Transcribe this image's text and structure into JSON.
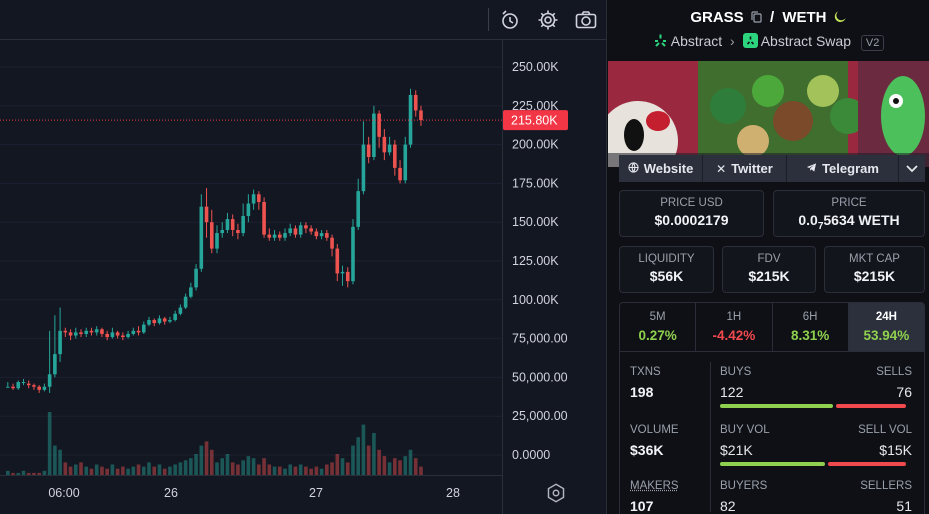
{
  "chart": {
    "price_ticks": [
      "250.00K",
      "225.00K",
      "200.00K",
      "175.00K",
      "150.00K",
      "125.00K",
      "100.00K",
      "75,000.00",
      "50,000.00",
      "25,000.00",
      "0.0000"
    ],
    "current_price_label": "215.80K",
    "time_ticks": [
      "06:00",
      "26",
      "27",
      "28"
    ],
    "colors": {
      "up": "#26a69a",
      "down": "#ef5350",
      "tag": "#f23645"
    }
  },
  "chart_data": {
    "type": "candlestick",
    "x_tick_labels": [
      "06:00",
      "26",
      "27",
      "28"
    ],
    "y_range": [
      0,
      250000
    ],
    "current_price": 215800,
    "candles_approx": [
      [
        44000,
        44000,
        47000,
        44000
      ],
      [
        44000,
        43000,
        46000,
        42000
      ],
      [
        43000,
        47000,
        48000,
        42000
      ],
      [
        47000,
        47000,
        49000,
        45000
      ],
      [
        46000,
        45000,
        48000,
        43000
      ],
      [
        45000,
        44000,
        46000,
        42000
      ],
      [
        44000,
        42000,
        45000,
        40000
      ],
      [
        42000,
        44000,
        46000,
        41000
      ],
      [
        44000,
        52000,
        80000,
        40000
      ],
      [
        52000,
        65000,
        90000,
        50000
      ],
      [
        65000,
        80000,
        95000,
        60000
      ],
      [
        80000,
        79000,
        82000,
        76000
      ],
      [
        79000,
        77000,
        81000,
        74000
      ],
      [
        77000,
        79000,
        82000,
        75000
      ],
      [
        79000,
        78000,
        81000,
        76000
      ],
      [
        78000,
        80000,
        82000,
        76000
      ],
      [
        80000,
        79000,
        82000,
        77000
      ],
      [
        79000,
        81000,
        83000,
        77000
      ],
      [
        81000,
        78000,
        82000,
        76000
      ],
      [
        78000,
        76000,
        80000,
        74000
      ],
      [
        76000,
        79000,
        82000,
        75000
      ],
      [
        79000,
        77000,
        80000,
        75000
      ],
      [
        77000,
        76000,
        79000,
        74000
      ],
      [
        76000,
        78000,
        80000,
        75000
      ],
      [
        78000,
        80000,
        82000,
        77000
      ],
      [
        80000,
        79000,
        83000,
        77000
      ],
      [
        79000,
        84000,
        86000,
        78000
      ],
      [
        84000,
        87000,
        89000,
        83000
      ],
      [
        87000,
        85000,
        88000,
        83000
      ],
      [
        85000,
        88000,
        90000,
        84000
      ],
      [
        88000,
        86000,
        89000,
        84000
      ],
      [
        86000,
        87000,
        89000,
        85000
      ],
      [
        87000,
        91000,
        93000,
        86000
      ],
      [
        91000,
        95000,
        97000,
        90000
      ],
      [
        95000,
        102000,
        104000,
        94000
      ],
      [
        102000,
        108000,
        111000,
        101000
      ],
      [
        108000,
        120000,
        123000,
        106000
      ],
      [
        120000,
        160000,
        168000,
        118000
      ],
      [
        160000,
        150000,
        172000,
        140000
      ],
      [
        150000,
        133000,
        158000,
        130000
      ],
      [
        133000,
        143000,
        148000,
        130000
      ],
      [
        143000,
        145000,
        150000,
        140000
      ],
      [
        145000,
        152000,
        156000,
        143000
      ],
      [
        152000,
        145000,
        155000,
        141000
      ],
      [
        145000,
        143000,
        149000,
        139000
      ],
      [
        143000,
        154000,
        162000,
        141000
      ],
      [
        154000,
        162000,
        168000,
        150000
      ],
      [
        162000,
        168000,
        171000,
        158000
      ],
      [
        168000,
        163000,
        170000,
        158000
      ],
      [
        163000,
        142000,
        166000,
        140000
      ],
      [
        142000,
        140000,
        146000,
        138000
      ],
      [
        140000,
        142000,
        145000,
        138000
      ],
      [
        142000,
        140000,
        144000,
        138000
      ],
      [
        140000,
        143000,
        146000,
        138000
      ],
      [
        143000,
        146000,
        149000,
        141000
      ],
      [
        146000,
        142000,
        148000,
        140000
      ],
      [
        142000,
        148000,
        150000,
        140000
      ],
      [
        148000,
        146000,
        150000,
        143000
      ],
      [
        146000,
        144000,
        148000,
        142000
      ],
      [
        144000,
        141000,
        146000,
        139000
      ],
      [
        141000,
        143000,
        145000,
        139000
      ],
      [
        143000,
        140000,
        145000,
        138000
      ],
      [
        140000,
        133000,
        142000,
        128000
      ],
      [
        133000,
        117000,
        136000,
        112000
      ],
      [
        117000,
        118000,
        122000,
        109000
      ],
      [
        118000,
        112000,
        121000,
        108000
      ],
      [
        112000,
        147000,
        152000,
        110000
      ],
      [
        147000,
        170000,
        178000,
        145000
      ],
      [
        170000,
        200000,
        215000,
        168000
      ],
      [
        200000,
        192000,
        205000,
        188000
      ],
      [
        192000,
        220000,
        225000,
        190000
      ],
      [
        220000,
        205000,
        222000,
        198000
      ],
      [
        205000,
        195000,
        210000,
        190000
      ],
      [
        195000,
        200000,
        205000,
        193000
      ],
      [
        200000,
        185000,
        203000,
        180000
      ],
      [
        185000,
        177000,
        190000,
        175000
      ],
      [
        177000,
        200000,
        205000,
        175000
      ],
      [
        200000,
        232000,
        236000,
        198000
      ],
      [
        232000,
        222000,
        235000,
        218000
      ],
      [
        222000,
        215800,
        225000,
        212000
      ]
    ]
  },
  "panel": {
    "base_token": "GRASS",
    "separator": "/",
    "quote_token": "WETH",
    "chain": "Abstract",
    "dex": "Abstract Swap",
    "version": "V2",
    "links": [
      {
        "label": "Website",
        "icon": "globe-icon"
      },
      {
        "label": "Twitter",
        "icon": "x-icon"
      },
      {
        "label": "Telegram",
        "icon": "telegram-icon"
      }
    ],
    "price_usd_label": "PRICE USD",
    "price_usd": "$0.0002179",
    "price_label": "PRICE",
    "price_prefix": "0.0",
    "price_sub": "7",
    "price_suffix": "5634 WETH",
    "liquidity_label": "LIQUIDITY",
    "liquidity": "$56K",
    "fdv_label": "FDV",
    "fdv": "$215K",
    "mktcap_label": "MKT CAP",
    "mktcap": "$215K",
    "tabs": [
      {
        "label": "5M",
        "value": "0.27%",
        "color": "#8fd14f"
      },
      {
        "label": "1H",
        "value": "-4.42%",
        "color": "#f0494e"
      },
      {
        "label": "6H",
        "value": "8.31%",
        "color": "#8fd14f"
      },
      {
        "label": "24H",
        "value": "53.94%",
        "color": "#8fd14f"
      }
    ],
    "txns_label": "TXNS",
    "txns": "198",
    "buys_label": "BUYS",
    "buys": "122",
    "sells_label": "SELLS",
    "sells": "76",
    "volume_label": "VOLUME",
    "volume": "$36K",
    "buyvol_label": "BUY VOL",
    "buyvol": "$21K",
    "sellvol_label": "SELL VOL",
    "sellvol": "$15K",
    "makers_label": "MAKERS",
    "makers": "107",
    "buyers_label": "BUYERS",
    "buyers": "82",
    "sellers_label": "SELLERS",
    "sellers": "51",
    "buy_color": "#8fd14f",
    "sell_color": "#f0494e"
  }
}
